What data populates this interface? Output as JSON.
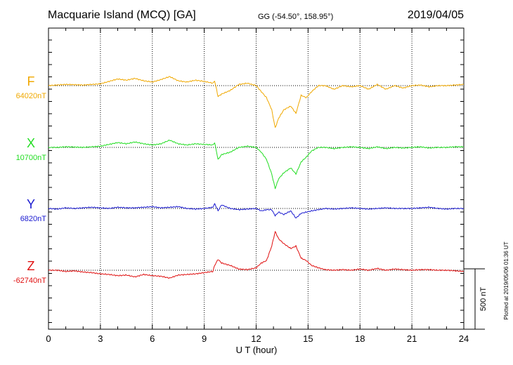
{
  "chart_data": {
    "type": "line",
    "title": "Macquarie Island (MCQ)  [GA]",
    "coords": "GG (-54.50°, 158.95°)",
    "date": "2019/04/05",
    "xlabel": "U T (hour)",
    "xlim": [
      0,
      24
    ],
    "x_ticks": [
      "0",
      "3",
      "6",
      "9",
      "12",
      "15",
      "18",
      "21",
      "24"
    ],
    "scale_label": "500 nT",
    "side_note": "Plotted at 2019/05/06 01:36 UT",
    "grid": true,
    "series": [
      {
        "name": "F",
        "baseline_label": "64020nT",
        "color": "#f0a800",
        "t": [
          0,
          0.5,
          1,
          1.5,
          2,
          2.5,
          3,
          3.5,
          4,
          4.5,
          5,
          5.5,
          6,
          6.5,
          7,
          7.5,
          8,
          8.5,
          9,
          9.5,
          9.6,
          9.8,
          10,
          10.5,
          11,
          11.5,
          12,
          12.3,
          12.6,
          12.9,
          13.1,
          13.3,
          13.6,
          14,
          14.3,
          14.6,
          14.9,
          15.2,
          15.6,
          16,
          16.5,
          17,
          17.5,
          18,
          18.5,
          19,
          19.5,
          20,
          20.5,
          21,
          21.5,
          22,
          22.5,
          23,
          23.5,
          24
        ],
        "delta": [
          0,
          5,
          10,
          8,
          5,
          10,
          15,
          35,
          55,
          45,
          60,
          40,
          30,
          50,
          75,
          40,
          30,
          45,
          35,
          20,
          40,
          -90,
          -70,
          -40,
          10,
          20,
          0,
          -50,
          -100,
          -200,
          -350,
          -270,
          -200,
          -170,
          -230,
          -80,
          -100,
          -50,
          0,
          0,
          -30,
          0,
          -10,
          0,
          -30,
          10,
          -30,
          0,
          -20,
          0,
          5,
          -10,
          0,
          0,
          5,
          10
        ]
      },
      {
        "name": "X",
        "baseline_label": "10700nT",
        "color": "#22dd22",
        "t": [
          0,
          0.5,
          1,
          1.5,
          2,
          2.5,
          3,
          3.5,
          4,
          4.5,
          5,
          5.5,
          6,
          6.5,
          7,
          7.5,
          8,
          8.5,
          9,
          9.5,
          9.6,
          9.8,
          10,
          10.5,
          11,
          11.5,
          12,
          12.3,
          12.6,
          12.9,
          13.1,
          13.3,
          13.6,
          14,
          14.3,
          14.6,
          14.9,
          15.2,
          15.6,
          16,
          16.5,
          17,
          17.5,
          18,
          18.5,
          19,
          19.5,
          20,
          20.5,
          21,
          21.5,
          22,
          22.5,
          23,
          23.5,
          24
        ],
        "delta": [
          0,
          0,
          5,
          3,
          0,
          5,
          10,
          25,
          40,
          30,
          45,
          30,
          20,
          30,
          60,
          30,
          20,
          30,
          25,
          20,
          40,
          -100,
          -60,
          -40,
          0,
          10,
          0,
          -40,
          -100,
          -220,
          -340,
          -260,
          -210,
          -170,
          -220,
          -120,
          -80,
          -30,
          0,
          0,
          -10,
          0,
          5,
          0,
          -10,
          5,
          -10,
          0,
          -5,
          0,
          5,
          -5,
          0,
          0,
          5,
          5
        ]
      },
      {
        "name": "Y",
        "baseline_label": "6820nT",
        "color": "#1a1ad0",
        "t": [
          0,
          0.5,
          1,
          1.5,
          2,
          2.5,
          3,
          3.5,
          4,
          4.5,
          5,
          5.5,
          6,
          6.5,
          7,
          7.5,
          8,
          8.5,
          9,
          9.5,
          9.6,
          9.8,
          10,
          10.5,
          11,
          11.5,
          12,
          12.3,
          12.6,
          12.9,
          13.1,
          13.3,
          13.6,
          14,
          14.3,
          14.6,
          14.9,
          15.2,
          15.6,
          16,
          16.5,
          17,
          17.5,
          18,
          18.5,
          19,
          19.5,
          20,
          20.5,
          21,
          21.5,
          22,
          22.5,
          23,
          23.5,
          24
        ],
        "delta": [
          0,
          -5,
          5,
          0,
          5,
          10,
          5,
          0,
          10,
          5,
          5,
          10,
          15,
          5,
          10,
          15,
          0,
          -5,
          0,
          10,
          40,
          -20,
          30,
          0,
          -10,
          -5,
          0,
          -20,
          -10,
          -10,
          -60,
          -30,
          -50,
          -20,
          -80,
          -40,
          -30,
          -20,
          -10,
          0,
          -5,
          0,
          5,
          0,
          -5,
          0,
          5,
          0,
          0,
          0,
          5,
          10,
          0,
          -5,
          0,
          0
        ]
      },
      {
        "name": "Z",
        "baseline_label": "-62740nT",
        "color": "#e01010",
        "t": [
          0,
          0.5,
          1,
          1.5,
          2,
          2.5,
          3,
          3.5,
          4,
          4.5,
          5,
          5.5,
          6,
          6.5,
          7,
          7.5,
          8,
          8.5,
          9,
          9.5,
          9.6,
          9.8,
          10,
          10.5,
          11,
          11.5,
          12,
          12.3,
          12.6,
          12.9,
          13.1,
          13.3,
          13.6,
          14,
          14.3,
          14.6,
          14.9,
          15.2,
          15.6,
          16,
          16.5,
          17,
          17.5,
          18,
          18.5,
          19,
          19.5,
          20,
          20.5,
          21,
          21.5,
          22,
          22.5,
          23,
          23.5,
          24
        ],
        "delta": [
          0,
          0,
          -10,
          -5,
          -15,
          -20,
          -30,
          -35,
          -45,
          -40,
          -55,
          -35,
          -45,
          -50,
          -65,
          -40,
          -35,
          -30,
          -20,
          -10,
          40,
          90,
          60,
          40,
          10,
          5,
          20,
          60,
          80,
          200,
          320,
          260,
          220,
          180,
          200,
          100,
          80,
          40,
          20,
          5,
          0,
          5,
          0,
          10,
          0,
          15,
          0,
          10,
          5,
          0,
          5,
          5,
          0,
          0,
          -5,
          -10
        ]
      }
    ]
  }
}
